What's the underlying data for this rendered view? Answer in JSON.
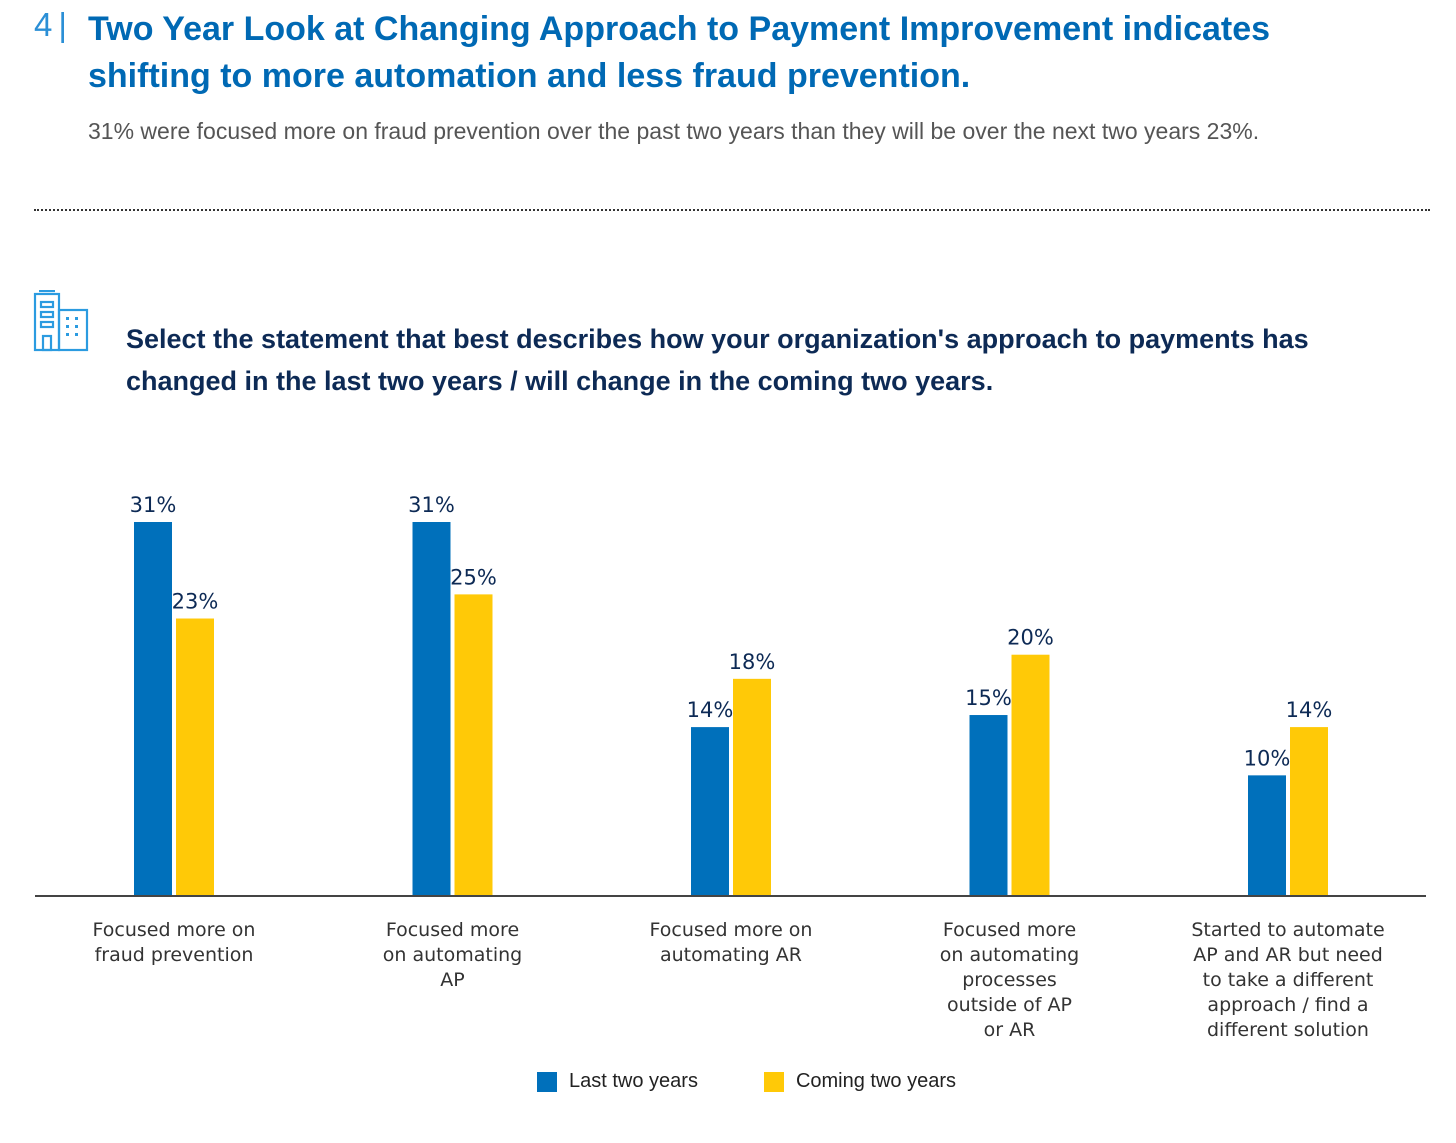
{
  "header": {
    "section_number": "4",
    "section_separator": "|",
    "title": "Two Year Look at Changing Approach to Payment Improvement indicates shifting to more automation and less fraud prevention.",
    "subtitle": "31% were focused more on fraud prevention over the past two years than they will be over the next two years 23%."
  },
  "question": {
    "icon": "building-icon",
    "text": "Select the statement that best describes how your organization's approach to payments has changed in the last two years / will change in the coming two years."
  },
  "colors": {
    "title_blue": "#0069b4",
    "section_blue": "#2b8fd6",
    "question_navy": "#0d2a55",
    "last_two_years": "#0070bb",
    "coming_two_years": "#ffc907",
    "label_navy": "#0d2a55"
  },
  "chart_data": {
    "type": "bar",
    "title": "",
    "xlabel": "",
    "ylabel": "",
    "ylim": [
      0,
      31
    ],
    "grid": false,
    "legend_position": "bottom",
    "categories": [
      [
        "Focused more on",
        "fraud prevention"
      ],
      [
        "Focused more",
        "on automating",
        "AP"
      ],
      [
        "Focused more on",
        "automating AR"
      ],
      [
        "Focused more",
        "on automating",
        "processes",
        "outside of AP",
        "or AR"
      ],
      [
        "Started to automate",
        "AP and AR but need",
        "to take a different",
        "approach / find a",
        "different solution"
      ]
    ],
    "series": [
      {
        "name": "Last two years",
        "color": "#0070bb",
        "values": [
          31,
          31,
          14,
          15,
          10
        ],
        "labels": [
          "31%",
          "31%",
          "14%",
          "15%",
          "10%"
        ]
      },
      {
        "name": "Coming two years",
        "color": "#ffc907",
        "values": [
          23,
          25,
          18,
          20,
          14
        ],
        "labels": [
          "23%",
          "25%",
          "18%",
          "20%",
          "14%"
        ]
      }
    ]
  }
}
